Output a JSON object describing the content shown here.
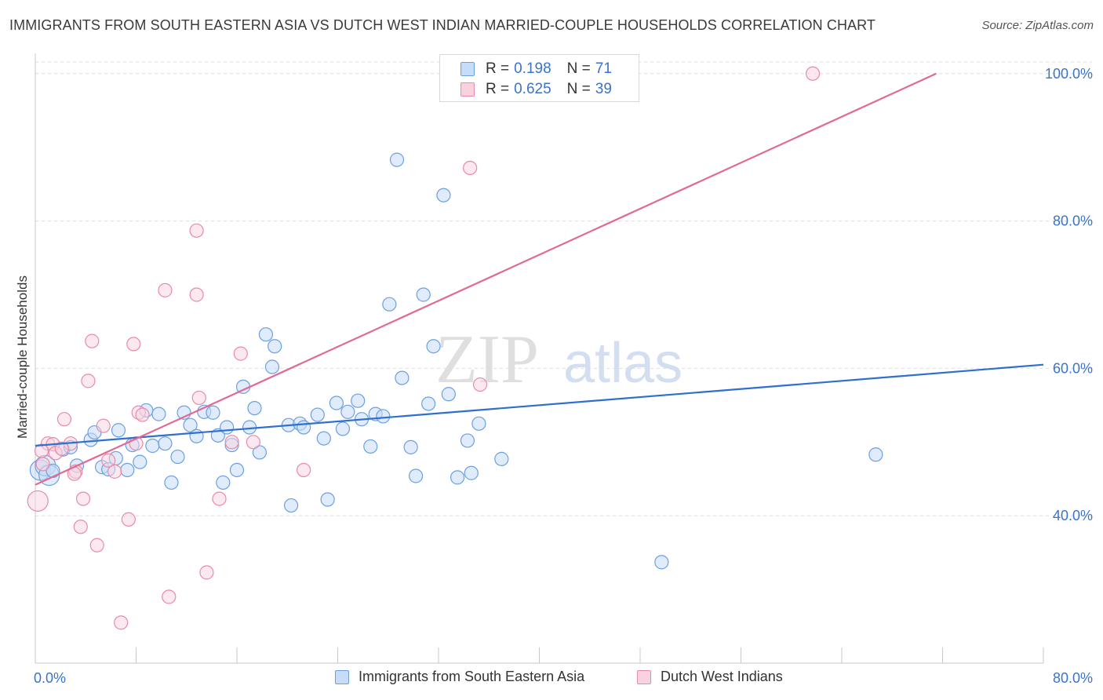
{
  "title": "IMMIGRANTS FROM SOUTH EASTERN ASIA VS DUTCH WEST INDIAN MARRIED-COUPLE HOUSEHOLDS CORRELATION CHART",
  "source": "Source: ZipAtlas.com",
  "colors": {
    "blue": "#6c9fe0",
    "blue_fill": "#c7dcf7",
    "blue_line": "#2f6fcf",
    "pink": "#e98aa9",
    "pink_fill": "#f8d3df",
    "pink_line": "#e06a95",
    "tick": "#3b73c9"
  },
  "legend": {
    "rows": [
      {
        "r_label": "R =",
        "r_value": "0.198",
        "n_label": "N =",
        "n_value": "71"
      },
      {
        "r_label": "R =",
        "r_value": "0.625",
        "n_label": "N =",
        "n_value": "39"
      }
    ]
  },
  "bottom_legend": [
    "Immigrants from South Eastern Asia",
    "Dutch West Indians"
  ],
  "watermark": {
    "zip": "ZIP",
    "atlas": "atlas"
  },
  "chart_data": {
    "type": "scatter",
    "title": "IMMIGRANTS FROM SOUTH EASTERN ASIA VS DUTCH WEST INDIAN MARRIED-COUPLE HOUSEHOLDS CORRELATION CHART",
    "xlabel": "",
    "ylabel": "Married-couple Households",
    "xlim": [
      0,
      80
    ],
    "ylim": [
      20,
      102
    ],
    "x_tick_labels": [
      "0.0%",
      "80.0%"
    ],
    "y_ticks": [
      40,
      60,
      80,
      100
    ],
    "y_tick_labels": [
      "40.0%",
      "60.0%",
      "80.0%",
      "100.0%"
    ],
    "grid": true,
    "legend_position": "top-center",
    "series": [
      {
        "name": "Immigrants from South Eastern Asia",
        "trend": {
          "x": [
            0.0,
            80.0
          ],
          "y": [
            49.5,
            60.5
          ]
        },
        "points": [
          [
            0.4,
            46.2
          ],
          [
            0.8,
            46.8
          ],
          [
            1.1,
            45.5
          ],
          [
            1.4,
            46.1
          ],
          [
            2.2,
            49.0
          ],
          [
            2.8,
            49.3
          ],
          [
            3.3,
            46.8
          ],
          [
            4.4,
            50.3
          ],
          [
            4.7,
            51.3
          ],
          [
            5.3,
            46.6
          ],
          [
            5.8,
            46.3
          ],
          [
            6.4,
            47.8
          ],
          [
            6.6,
            51.6
          ],
          [
            7.3,
            46.2
          ],
          [
            7.7,
            49.6
          ],
          [
            8.3,
            47.3
          ],
          [
            8.8,
            54.3
          ],
          [
            9.3,
            49.5
          ],
          [
            9.8,
            53.8
          ],
          [
            10.3,
            49.8
          ],
          [
            10.8,
            44.5
          ],
          [
            11.3,
            48.0
          ],
          [
            11.8,
            54.0
          ],
          [
            12.3,
            52.3
          ],
          [
            12.8,
            50.8
          ],
          [
            13.4,
            54.1
          ],
          [
            14.1,
            54.0
          ],
          [
            14.5,
            50.9
          ],
          [
            14.9,
            44.5
          ],
          [
            15.2,
            52.0
          ],
          [
            15.6,
            49.6
          ],
          [
            16.0,
            46.2
          ],
          [
            16.5,
            57.5
          ],
          [
            17.0,
            52.0
          ],
          [
            17.4,
            54.6
          ],
          [
            17.8,
            48.6
          ],
          [
            18.3,
            64.6
          ],
          [
            18.8,
            60.2
          ],
          [
            19.0,
            63.0
          ],
          [
            20.1,
            52.3
          ],
          [
            20.3,
            41.4
          ],
          [
            21.0,
            52.5
          ],
          [
            21.3,
            52.0
          ],
          [
            22.4,
            53.7
          ],
          [
            22.9,
            50.5
          ],
          [
            23.2,
            42.2
          ],
          [
            23.9,
            55.3
          ],
          [
            24.4,
            51.8
          ],
          [
            24.8,
            54.1
          ],
          [
            25.6,
            55.6
          ],
          [
            25.9,
            53.1
          ],
          [
            26.6,
            49.4
          ],
          [
            27.0,
            53.8
          ],
          [
            27.6,
            53.5
          ],
          [
            28.1,
            68.7
          ],
          [
            28.7,
            88.3
          ],
          [
            29.1,
            58.7
          ],
          [
            29.8,
            49.3
          ],
          [
            30.2,
            45.4
          ],
          [
            30.8,
            70.0
          ],
          [
            31.2,
            55.2
          ],
          [
            31.6,
            63.0
          ],
          [
            32.4,
            83.5
          ],
          [
            32.8,
            56.5
          ],
          [
            33.5,
            45.2
          ],
          [
            34.3,
            50.2
          ],
          [
            34.6,
            45.8
          ],
          [
            35.2,
            52.5
          ],
          [
            37.0,
            47.7
          ],
          [
            49.7,
            33.7
          ],
          [
            66.7,
            48.3
          ]
        ]
      },
      {
        "name": "Dutch West Indians",
        "trend": {
          "x": [
            0.0,
            71.5
          ],
          "y": [
            44.2,
            100.0
          ]
        },
        "points": [
          [
            0.2,
            42.0
          ],
          [
            0.6,
            47.0
          ],
          [
            1.0,
            49.8
          ],
          [
            1.4,
            49.7
          ],
          [
            1.6,
            48.5
          ],
          [
            2.3,
            53.1
          ],
          [
            2.8,
            49.8
          ],
          [
            3.2,
            46.0
          ],
          [
            3.6,
            38.5
          ],
          [
            3.8,
            42.3
          ],
          [
            4.2,
            58.3
          ],
          [
            4.5,
            63.7
          ],
          [
            4.9,
            36.0
          ],
          [
            5.4,
            52.2
          ],
          [
            5.8,
            47.5
          ],
          [
            6.3,
            46.0
          ],
          [
            6.8,
            25.5
          ],
          [
            7.4,
            39.5
          ],
          [
            7.8,
            63.3
          ],
          [
            8.2,
            54.0
          ],
          [
            8.5,
            53.7
          ],
          [
            10.3,
            70.6
          ],
          [
            10.6,
            29.0
          ],
          [
            12.8,
            70.0
          ],
          [
            12.8,
            78.7
          ],
          [
            13.0,
            56.0
          ],
          [
            13.6,
            32.3
          ],
          [
            14.6,
            42.3
          ],
          [
            15.6,
            50.0
          ],
          [
            16.3,
            62.0
          ],
          [
            17.3,
            50.0
          ],
          [
            21.3,
            46.2
          ],
          [
            34.5,
            87.2
          ],
          [
            35.3,
            57.8
          ],
          [
            61.7,
            100.0
          ],
          [
            0.5,
            48.8
          ],
          [
            2.1,
            49.1
          ],
          [
            3.1,
            45.7
          ],
          [
            8.0,
            49.8
          ]
        ]
      }
    ]
  }
}
